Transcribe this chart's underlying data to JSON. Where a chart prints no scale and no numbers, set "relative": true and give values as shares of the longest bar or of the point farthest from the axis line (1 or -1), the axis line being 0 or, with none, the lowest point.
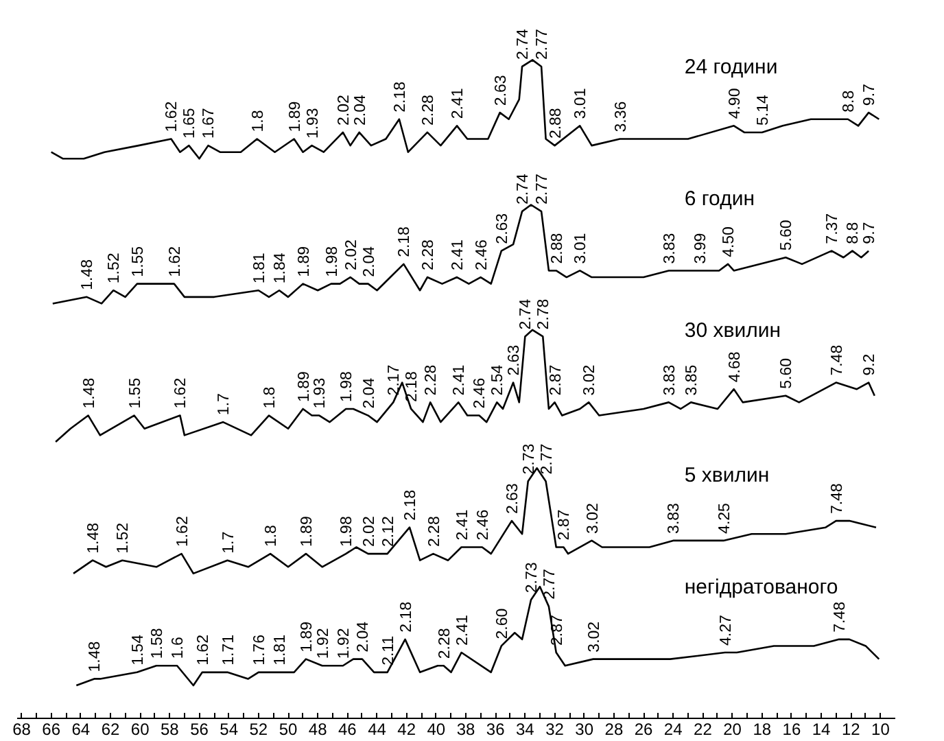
{
  "chart_data": {
    "type": "line",
    "relative": true,
    "xlim": [
      68.3,
      9.0
    ],
    "xticks": [
      68,
      {
        "value": 67,
        "label": null
      },
      66,
      {
        "value": 65,
        "label": null
      },
      64,
      {
        "value": 63,
        "label": null
      },
      62,
      {
        "value": 61,
        "label": null
      },
      60,
      {
        "value": 59,
        "label": null
      },
      58,
      {
        "value": 57,
        "label": null
      },
      56,
      {
        "value": 55,
        "label": null
      },
      54,
      {
        "value": 53,
        "label": null
      },
      52,
      {
        "value": 51,
        "label": null
      },
      50,
      {
        "value": 49,
        "label": null
      },
      48,
      {
        "value": 47,
        "label": null
      },
      46,
      {
        "value": 45,
        "label": null
      },
      44,
      {
        "value": 43,
        "label": null
      },
      42,
      {
        "value": 41,
        "label": null
      },
      40,
      {
        "value": 39,
        "label": null
      },
      38,
      {
        "value": 37,
        "label": null
      },
      36,
      {
        "value": 35,
        "label": null
      },
      34,
      {
        "value": 33,
        "label": null
      },
      32,
      {
        "value": 31,
        "label": null
      },
      30,
      {
        "value": 29,
        "label": null
      },
      28,
      {
        "value": 27,
        "label": null
      },
      26,
      {
        "value": 25,
        "label": null
      },
      24,
      {
        "value": 23,
        "label": null
      },
      22,
      {
        "value": 21,
        "label": null
      },
      20,
      {
        "value": 19,
        "label": null
      },
      18,
      {
        "value": 17,
        "label": null
      },
      16,
      {
        "value": 15,
        "label": null
      },
      14,
      {
        "value": 13,
        "label": null
      },
      12,
      {
        "value": 11,
        "label": null
      },
      10
    ],
    "series": [
      {
        "name": "24 години",
        "color": "#000000",
        "x": [
          66.0,
          65.2,
          63.8,
          62.4,
          60.1,
          57.9,
          57.3,
          56.7,
          56.0,
          55.4,
          54.6,
          53.2,
          52.1,
          50.9,
          49.6,
          49.0,
          48.4,
          47.6,
          46.3,
          45.8,
          45.2,
          44.4,
          43.4,
          42.5,
          41.9,
          40.6,
          39.7,
          38.6,
          37.9,
          36.5,
          35.7,
          35.1,
          34.4,
          34.2,
          33.5,
          32.9,
          32.6,
          32.0,
          30.3,
          29.5,
          27.6,
          25.8,
          23.0,
          19.9,
          19.2,
          18.0,
          16.6,
          14.7,
          12.2,
          11.5,
          10.8,
          10.1
        ],
        "values": [
          0.86,
          0.85,
          0.85,
          0.86,
          0.87,
          0.88,
          0.86,
          0.87,
          0.85,
          0.87,
          0.86,
          0.86,
          0.88,
          0.86,
          0.88,
          0.86,
          0.87,
          0.86,
          0.89,
          0.87,
          0.89,
          0.87,
          0.88,
          0.91,
          0.86,
          0.89,
          0.87,
          0.9,
          0.88,
          0.88,
          0.92,
          0.91,
          0.94,
          0.99,
          1.0,
          0.99,
          0.88,
          0.87,
          0.9,
          0.87,
          0.88,
          0.88,
          0.88,
          0.9,
          0.89,
          0.89,
          0.9,
          0.91,
          0.91,
          0.9,
          0.92,
          0.91
        ]
      },
      {
        "name": "6 годин",
        "color": "#000000",
        "x": [
          65.9,
          63.6,
          62.6,
          61.8,
          61.0,
          60.2,
          58.7,
          57.7,
          57.0,
          55.0,
          52.0,
          51.3,
          50.6,
          50.0,
          49.0,
          48.0,
          47.1,
          46.5,
          45.8,
          45.2,
          44.6,
          44.0,
          43.1,
          42.2,
          41.1,
          40.6,
          39.6,
          38.6,
          37.8,
          37.0,
          36.3,
          35.6,
          34.8,
          34.2,
          33.6,
          32.9,
          32.4,
          31.9,
          31.2,
          30.3,
          29.5,
          26.0,
          24.3,
          23.0,
          22.2,
          20.9,
          20.3,
          19.9,
          16.4,
          15.3,
          13.3,
          12.5,
          11.9,
          11.3,
          10.8
        ],
        "values": [
          0.63,
          0.64,
          0.63,
          0.65,
          0.64,
          0.66,
          0.66,
          0.66,
          0.64,
          0.64,
          0.65,
          0.64,
          0.65,
          0.64,
          0.66,
          0.65,
          0.66,
          0.66,
          0.67,
          0.66,
          0.66,
          0.65,
          0.67,
          0.69,
          0.65,
          0.67,
          0.66,
          0.67,
          0.66,
          0.67,
          0.66,
          0.71,
          0.72,
          0.77,
          0.78,
          0.77,
          0.68,
          0.68,
          0.67,
          0.68,
          0.67,
          0.67,
          0.68,
          0.68,
          0.68,
          0.68,
          0.69,
          0.68,
          0.7,
          0.69,
          0.71,
          0.7,
          0.71,
          0.7,
          0.71
        ]
      },
      {
        "name": "30 хвилин",
        "color": "#000000",
        "x": [
          65.7,
          64.7,
          63.5,
          62.7,
          60.4,
          59.7,
          57.3,
          57.0,
          54.4,
          52.5,
          51.3,
          50.0,
          49.0,
          48.4,
          47.9,
          47.2,
          46.1,
          45.6,
          44.6,
          44.0,
          42.9,
          42.3,
          41.7,
          40.9,
          40.4,
          39.7,
          38.5,
          37.9,
          37.1,
          36.6,
          35.9,
          35.5,
          34.8,
          34.4,
          34.0,
          33.5,
          32.8,
          32.4,
          32.0,
          31.5,
          30.3,
          29.7,
          29.0,
          26.0,
          24.3,
          23.5,
          22.8,
          21.0,
          19.9,
          19.3,
          16.4,
          15.5,
          13.0,
          11.6,
          10.8,
          10.4
        ],
        "values": [
          0.42,
          0.44,
          0.46,
          0.43,
          0.46,
          0.44,
          0.46,
          0.43,
          0.45,
          0.43,
          0.46,
          0.44,
          0.47,
          0.46,
          0.46,
          0.45,
          0.47,
          0.47,
          0.46,
          0.45,
          0.48,
          0.51,
          0.47,
          0.45,
          0.48,
          0.45,
          0.48,
          0.46,
          0.46,
          0.45,
          0.48,
          0.47,
          0.51,
          0.48,
          0.58,
          0.59,
          0.58,
          0.47,
          0.48,
          0.46,
          0.47,
          0.48,
          0.46,
          0.47,
          0.48,
          0.47,
          0.48,
          0.47,
          0.5,
          0.48,
          0.49,
          0.48,
          0.51,
          0.5,
          0.51,
          0.49
        ]
      },
      {
        "name": "5 хвилин",
        "color": "#000000",
        "x": [
          64.5,
          63.2,
          62.3,
          61.2,
          58.9,
          57.2,
          56.4,
          54.1,
          52.7,
          51.2,
          50.0,
          48.8,
          47.7,
          46.1,
          45.4,
          44.6,
          43.9,
          43.3,
          41.8,
          41.1,
          40.2,
          39.2,
          38.3,
          36.9,
          36.3,
          34.9,
          34.2,
          33.8,
          33.2,
          32.6,
          31.9,
          31.4,
          31.1,
          29.5,
          28.8,
          25.6,
          24.0,
          21.0,
          20.6,
          18.7,
          16.4,
          13.7,
          13.0,
          12.1,
          10.3
        ],
        "values": [
          0.22,
          0.24,
          0.23,
          0.24,
          0.23,
          0.25,
          0.22,
          0.24,
          0.23,
          0.25,
          0.23,
          0.25,
          0.23,
          0.25,
          0.26,
          0.25,
          0.25,
          0.25,
          0.29,
          0.24,
          0.25,
          0.24,
          0.26,
          0.26,
          0.25,
          0.3,
          0.28,
          0.36,
          0.38,
          0.36,
          0.26,
          0.26,
          0.25,
          0.27,
          0.26,
          0.26,
          0.27,
          0.27,
          0.27,
          0.28,
          0.28,
          0.29,
          0.3,
          0.3,
          0.29
        ]
      },
      {
        "name": "негідратованого",
        "color": "#000000",
        "x": [
          64.3,
          63.1,
          62.7,
          60.2,
          58.9,
          57.5,
          56.4,
          55.8,
          54.1,
          52.7,
          52.0,
          50.6,
          49.6,
          48.8,
          47.7,
          46.3,
          45.6,
          45.0,
          44.2,
          43.3,
          42.1,
          41.1,
          39.9,
          39.5,
          39.0,
          38.3,
          36.3,
          35.6,
          34.7,
          34.2,
          33.6,
          33.0,
          32.4,
          31.9,
          31.3,
          29.4,
          28.0,
          24.2,
          20.5,
          19.7,
          17.2,
          14.5,
          12.8,
          12.1,
          11.0,
          10.1
        ],
        "values": [
          0.05,
          0.06,
          0.06,
          0.07,
          0.08,
          0.08,
          0.05,
          0.07,
          0.07,
          0.06,
          0.07,
          0.07,
          0.07,
          0.09,
          0.08,
          0.08,
          0.09,
          0.09,
          0.07,
          0.07,
          0.12,
          0.07,
          0.08,
          0.08,
          0.07,
          0.1,
          0.07,
          0.11,
          0.13,
          0.12,
          0.18,
          0.2,
          0.17,
          0.1,
          0.08,
          0.09,
          0.09,
          0.09,
          0.1,
          0.1,
          0.11,
          0.11,
          0.12,
          0.12,
          0.11,
          0.09
        ]
      }
    ],
    "annotations": [
      {
        "text": "1.62",
        "x": 57.9,
        "y": 0.88
      },
      {
        "text": "1.65",
        "x": 56.7,
        "y": 0.87
      },
      {
        "text": "1.67",
        "x": 55.4,
        "y": 0.87
      },
      {
        "text": "1.8",
        "x": 52.1,
        "y": 0.88
      },
      {
        "text": "1.89",
        "x": 49.6,
        "y": 0.88
      },
      {
        "text": "1.93",
        "x": 48.4,
        "y": 0.87
      },
      {
        "text": "2.02",
        "x": 46.3,
        "y": 0.89
      },
      {
        "text": "2.04",
        "x": 45.2,
        "y": 0.89
      },
      {
        "text": "2.18",
        "x": 42.5,
        "y": 0.91
      },
      {
        "text": "2.28",
        "x": 40.6,
        "y": 0.89
      },
      {
        "text": "2.41",
        "x": 38.6,
        "y": 0.9
      },
      {
        "text": "2.63",
        "x": 35.7,
        "y": 0.92
      },
      {
        "text": "2.74",
        "x": 34.2,
        "y": 0.99
      },
      {
        "text": "2.77",
        "x": 32.9,
        "y": 0.99
      },
      {
        "text": "2.88",
        "x": 32.0,
        "y": 0.87
      },
      {
        "text": "3.01",
        "x": 30.3,
        "y": 0.9
      },
      {
        "text": "3.36",
        "x": 27.6,
        "y": 0.88
      },
      {
        "text": "4.90",
        "x": 19.9,
        "y": 0.9
      },
      {
        "text": "5.14",
        "x": 18.0,
        "y": 0.89
      },
      {
        "text": "8.8",
        "x": 12.2,
        "y": 0.91
      },
      {
        "text": "9.7",
        "x": 10.8,
        "y": 0.92
      },
      {
        "text": "1.48",
        "x": 63.6,
        "y": 0.64
      },
      {
        "text": "1.52",
        "x": 61.8,
        "y": 0.65
      },
      {
        "text": "1.55",
        "x": 60.2,
        "y": 0.66
      },
      {
        "text": "1.62",
        "x": 57.7,
        "y": 0.66
      },
      {
        "text": "1.81",
        "x": 52.0,
        "y": 0.65
      },
      {
        "text": "1.84",
        "x": 50.6,
        "y": 0.65
      },
      {
        "text": "1.89",
        "x": 49.0,
        "y": 0.66
      },
      {
        "text": "1.98",
        "x": 47.1,
        "y": 0.66
      },
      {
        "text": "2.02",
        "x": 45.8,
        "y": 0.67
      },
      {
        "text": "2.04",
        "x": 44.6,
        "y": 0.66
      },
      {
        "text": "2.18",
        "x": 42.2,
        "y": 0.69
      },
      {
        "text": "2.28",
        "x": 40.6,
        "y": 0.67
      },
      {
        "text": "2.41",
        "x": 38.6,
        "y": 0.67
      },
      {
        "text": "2.46",
        "x": 37.0,
        "y": 0.67
      },
      {
        "text": "2.63",
        "x": 35.6,
        "y": 0.71
      },
      {
        "text": "2.74",
        "x": 34.2,
        "y": 0.77
      },
      {
        "text": "2.77",
        "x": 32.9,
        "y": 0.77
      },
      {
        "text": "2.88",
        "x": 31.9,
        "y": 0.68
      },
      {
        "text": "3.01",
        "x": 30.3,
        "y": 0.68
      },
      {
        "text": "3.83",
        "x": 24.3,
        "y": 0.68
      },
      {
        "text": "3.99",
        "x": 22.2,
        "y": 0.68
      },
      {
        "text": "4.50",
        "x": 20.3,
        "y": 0.69
      },
      {
        "text": "5.60",
        "x": 16.4,
        "y": 0.7
      },
      {
        "text": "7.37",
        "x": 13.3,
        "y": 0.71
      },
      {
        "text": "8.8",
        "x": 11.9,
        "y": 0.71
      },
      {
        "text": "9.7",
        "x": 10.8,
        "y": 0.71
      },
      {
        "text": "1.48",
        "x": 63.5,
        "y": 0.46
      },
      {
        "text": "1.55",
        "x": 60.4,
        "y": 0.46
      },
      {
        "text": "1.62",
        "x": 57.3,
        "y": 0.46
      },
      {
        "text": "1.7",
        "x": 54.4,
        "y": 0.45
      },
      {
        "text": "1.8",
        "x": 51.3,
        "y": 0.46
      },
      {
        "text": "1.89",
        "x": 49.0,
        "y": 0.47
      },
      {
        "text": "1.93",
        "x": 47.9,
        "y": 0.46
      },
      {
        "text": "1.98",
        "x": 46.1,
        "y": 0.47
      },
      {
        "text": "2.04",
        "x": 44.6,
        "y": 0.46
      },
      {
        "text": "2.17",
        "x": 42.9,
        "y": 0.48
      },
      {
        "text": "2.18",
        "x": 41.7,
        "y": 0.47
      },
      {
        "text": "2.28",
        "x": 40.4,
        "y": 0.48
      },
      {
        "text": "2.41",
        "x": 38.5,
        "y": 0.48
      },
      {
        "text": "2.46",
        "x": 37.1,
        "y": 0.46
      },
      {
        "text": "2.54",
        "x": 35.9,
        "y": 0.48
      },
      {
        "text": "2.63",
        "x": 34.8,
        "y": 0.51
      },
      {
        "text": "2.74",
        "x": 34.0,
        "y": 0.58
      },
      {
        "text": "2.78",
        "x": 32.8,
        "y": 0.58
      },
      {
        "text": "2.87",
        "x": 32.0,
        "y": 0.48
      },
      {
        "text": "3.02",
        "x": 29.7,
        "y": 0.48
      },
      {
        "text": "3.83",
        "x": 24.3,
        "y": 0.48
      },
      {
        "text": "3.85",
        "x": 22.8,
        "y": 0.48
      },
      {
        "text": "4.68",
        "x": 19.9,
        "y": 0.5
      },
      {
        "text": "5.60",
        "x": 16.4,
        "y": 0.49
      },
      {
        "text": "7.48",
        "x": 13.0,
        "y": 0.51
      },
      {
        "text": "9.2",
        "x": 10.8,
        "y": 0.51
      },
      {
        "text": "1.48",
        "x": 63.2,
        "y": 0.24
      },
      {
        "text": "1.52",
        "x": 61.2,
        "y": 0.24
      },
      {
        "text": "1.62",
        "x": 57.2,
        "y": 0.25
      },
      {
        "text": "1.7",
        "x": 54.1,
        "y": 0.24
      },
      {
        "text": "1.8",
        "x": 51.2,
        "y": 0.25
      },
      {
        "text": "1.89",
        "x": 48.8,
        "y": 0.25
      },
      {
        "text": "1.98",
        "x": 46.1,
        "y": 0.25
      },
      {
        "text": "2.02",
        "x": 44.6,
        "y": 0.25
      },
      {
        "text": "2.12",
        "x": 43.3,
        "y": 0.25
      },
      {
        "text": "2.18",
        "x": 41.8,
        "y": 0.29
      },
      {
        "text": "2.28",
        "x": 40.2,
        "y": 0.25
      },
      {
        "text": "2.41",
        "x": 38.3,
        "y": 0.26
      },
      {
        "text": "2.46",
        "x": 36.9,
        "y": 0.26
      },
      {
        "text": "2.63",
        "x": 34.9,
        "y": 0.3
      },
      {
        "text": "2.73",
        "x": 33.8,
        "y": 0.36
      },
      {
        "text": "2.77",
        "x": 32.6,
        "y": 0.36
      },
      {
        "text": "2.87",
        "x": 31.4,
        "y": 0.26
      },
      {
        "text": "3.02",
        "x": 29.5,
        "y": 0.27
      },
      {
        "text": "3.83",
        "x": 24.0,
        "y": 0.27
      },
      {
        "text": "4.25",
        "x": 20.6,
        "y": 0.27
      },
      {
        "text": "7.48",
        "x": 13.0,
        "y": 0.3
      },
      {
        "text": "1.48",
        "x": 63.1,
        "y": 0.06
      },
      {
        "text": "1.54",
        "x": 60.2,
        "y": 0.07
      },
      {
        "text": "1.58",
        "x": 58.9,
        "y": 0.08
      },
      {
        "text": "1.6",
        "x": 57.5,
        "y": 0.08
      },
      {
        "text": "1.62",
        "x": 55.8,
        "y": 0.07
      },
      {
        "text": "1.71",
        "x": 54.1,
        "y": 0.07
      },
      {
        "text": "1.76",
        "x": 52.0,
        "y": 0.07
      },
      {
        "text": "1.81",
        "x": 50.6,
        "y": 0.07
      },
      {
        "text": "1.89",
        "x": 48.8,
        "y": 0.09
      },
      {
        "text": "1.92",
        "x": 47.7,
        "y": 0.08
      },
      {
        "text": "1.92",
        "x": 46.3,
        "y": 0.08
      },
      {
        "text": "2.04",
        "x": 45.0,
        "y": 0.09
      },
      {
        "text": "2.11",
        "x": 43.3,
        "y": 0.07
      },
      {
        "text": "2.18",
        "x": 42.1,
        "y": 0.12
      },
      {
        "text": "2.28",
        "x": 39.5,
        "y": 0.08
      },
      {
        "text": "2.41",
        "x": 38.3,
        "y": 0.1
      },
      {
        "text": "2.60",
        "x": 35.6,
        "y": 0.11
      },
      {
        "text": "2.73",
        "x": 33.6,
        "y": 0.18
      },
      {
        "text": "2.77",
        "x": 32.4,
        "y": 0.17
      },
      {
        "text": "2.87",
        "x": 31.9,
        "y": 0.1
      },
      {
        "text": "3.02",
        "x": 29.4,
        "y": 0.09
      },
      {
        "text": "4.27",
        "x": 20.5,
        "y": 0.1
      },
      {
        "text": "7.48",
        "x": 12.8,
        "y": 0.12
      }
    ]
  }
}
